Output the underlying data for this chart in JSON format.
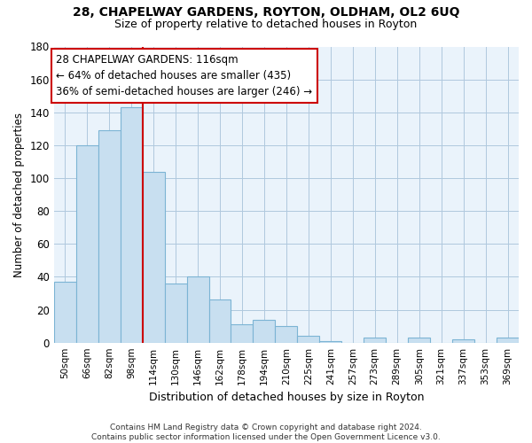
{
  "title1": "28, CHAPELWAY GARDENS, ROYTON, OLDHAM, OL2 6UQ",
  "title2": "Size of property relative to detached houses in Royton",
  "xlabel": "Distribution of detached houses by size in Royton",
  "ylabel": "Number of detached properties",
  "bar_labels": [
    "50sqm",
    "66sqm",
    "82sqm",
    "98sqm",
    "114sqm",
    "130sqm",
    "146sqm",
    "162sqm",
    "178sqm",
    "194sqm",
    "210sqm",
    "225sqm",
    "241sqm",
    "257sqm",
    "273sqm",
    "289sqm",
    "305sqm",
    "321sqm",
    "337sqm",
    "353sqm",
    "369sqm"
  ],
  "bar_values": [
    37,
    120,
    129,
    143,
    104,
    36,
    40,
    26,
    11,
    14,
    10,
    4,
    1,
    0,
    3,
    0,
    3,
    0,
    2,
    0,
    3
  ],
  "bar_color": "#c8dff0",
  "bar_edge_color": "#7cb4d4",
  "vline_x": 3.5,
  "vline_color": "#cc0000",
  "ylim": [
    0,
    180
  ],
  "yticks": [
    0,
    20,
    40,
    60,
    80,
    100,
    120,
    140,
    160,
    180
  ],
  "annotation_line1": "28 CHAPELWAY GARDENS: 116sqm",
  "annotation_line2": "← 64% of detached houses are smaller (435)",
  "annotation_line3": "36% of semi-detached houses are larger (246) →",
  "annotation_box_color": "#ffffff",
  "annotation_box_edge": "#cc0000",
  "footnote1": "Contains HM Land Registry data © Crown copyright and database right 2024.",
  "footnote2": "Contains public sector information licensed under the Open Government Licence v3.0.",
  "bg_color": "#eaf3fb"
}
